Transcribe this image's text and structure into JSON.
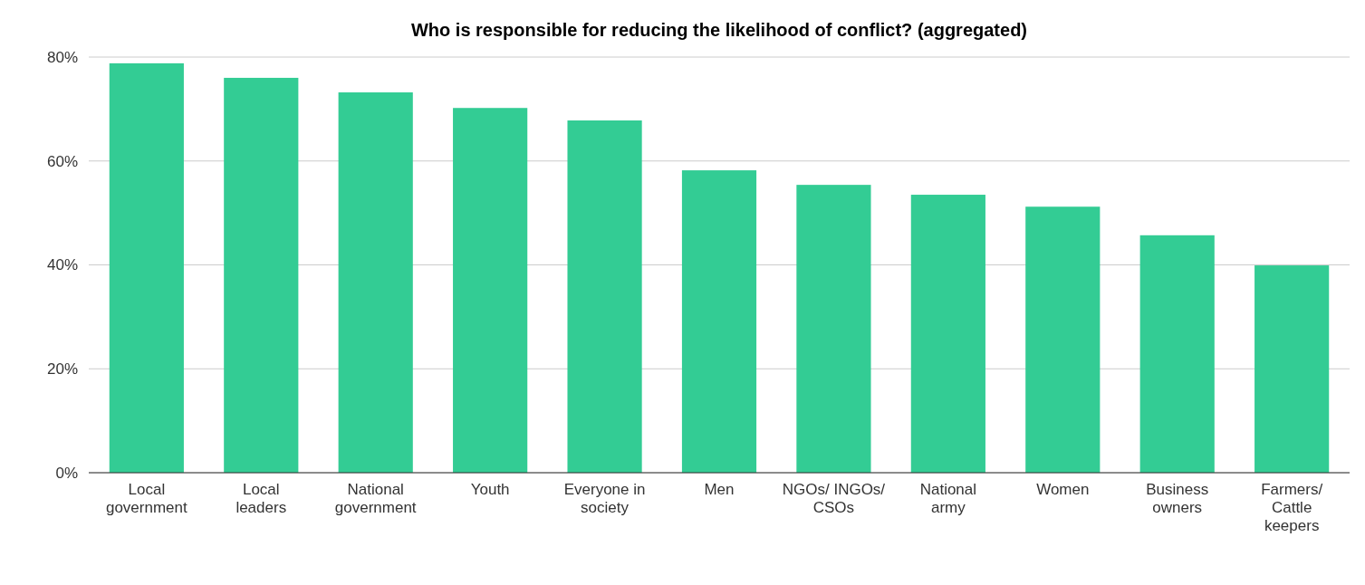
{
  "chart_data": {
    "type": "bar",
    "title": "Who is responsible for reducing the likelihood of conflict? (aggregated)",
    "categories": [
      "Local government",
      "Local leaders",
      "National government",
      "Youth",
      "Everyone in society",
      "Men",
      "NGOs/ INGOs/ CSOs",
      "National army",
      "Women",
      "Business owners",
      "Farmers/ Cattle keepers"
    ],
    "values": [
      78.8,
      76.0,
      73.2,
      70.2,
      67.8,
      58.2,
      55.4,
      53.5,
      51.2,
      45.7,
      39.9
    ],
    "color": "#33cc94",
    "ylim": [
      0,
      80
    ],
    "yticks": [
      {
        "value": 0,
        "label": "0%"
      },
      {
        "value": 20,
        "label": "20%"
      },
      {
        "value": 40,
        "label": "40%"
      },
      {
        "value": 60,
        "label": "60%"
      },
      {
        "value": 80,
        "label": "80%"
      }
    ],
    "grid": "y"
  }
}
